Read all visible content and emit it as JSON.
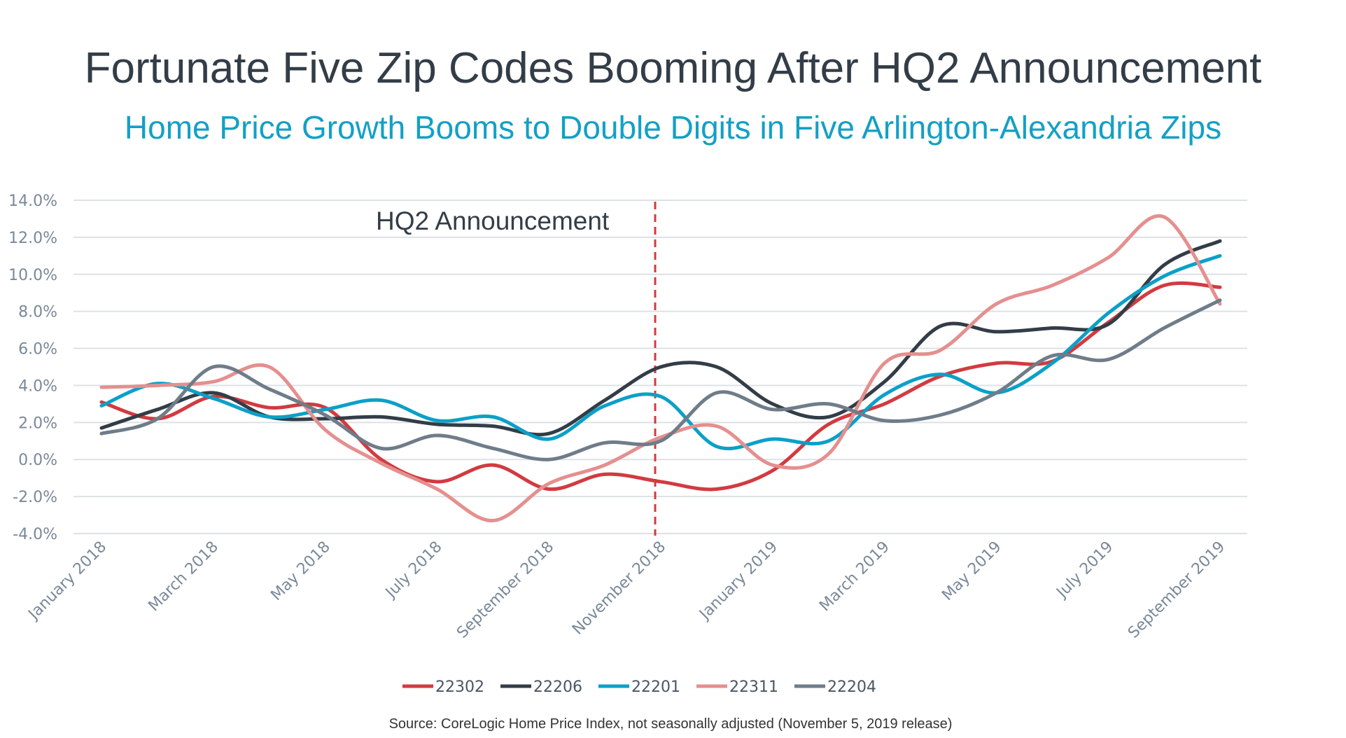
{
  "chart_data": {
    "type": "line",
    "title": "Fortunate Five Zip Codes Booming After HQ2 Announcement",
    "subtitle": "Home Price Growth Booms to Double Digits in Five Arlington-Alexandria Zips",
    "xlabel": "",
    "ylabel": "",
    "ylim": [
      -4,
      14
    ],
    "yticks": [
      "14.0%",
      "12.0%",
      "10.0%",
      "8.0%",
      "6.0%",
      "4.0%",
      "2.0%",
      "0.0%",
      "-2.0%",
      "-4.0%"
    ],
    "ytick_values": [
      14,
      12,
      10,
      8,
      6,
      4,
      2,
      0,
      -2,
      -4
    ],
    "x_labels": [
      "January 2018",
      "March 2018",
      "May 2018",
      "July 2018",
      "September 2018",
      "November 2018",
      "January 2019",
      "March 2019",
      "May 2019",
      "July 2019",
      "September 2019"
    ],
    "x": [
      "Jan 2018",
      "Feb 2018",
      "Mar 2018",
      "Apr 2018",
      "May 2018",
      "Jun 2018",
      "Jul 2018",
      "Aug 2018",
      "Sep 2018",
      "Oct 2018",
      "Nov 2018",
      "Dec 2018",
      "Jan 2019",
      "Feb 2019",
      "Mar 2019",
      "Apr 2019",
      "May 2019",
      "Jun 2019",
      "Jul 2019",
      "Aug 2019",
      "Sep 2019"
    ],
    "grid": true,
    "legend_placement": "bottom",
    "annotation": {
      "text": "HQ2 Announcement",
      "month_index": 9.9
    },
    "series": [
      {
        "name": "22302",
        "color": "#d13b40",
        "values": [
          3.1,
          2.2,
          3.4,
          2.8,
          2.8,
          0.0,
          -1.2,
          -0.3,
          -1.6,
          -0.8,
          -1.2,
          -1.6,
          -0.6,
          1.9,
          3.0,
          4.5,
          5.2,
          5.3,
          7.4,
          9.4,
          9.3
        ]
      },
      {
        "name": "22206",
        "color": "#333d47",
        "values": [
          1.7,
          2.7,
          3.6,
          2.3,
          2.2,
          2.3,
          1.9,
          1.8,
          1.4,
          3.2,
          5.0,
          5.0,
          3.0,
          2.3,
          4.2,
          7.2,
          6.9,
          7.1,
          7.3,
          10.5,
          11.8
        ]
      },
      {
        "name": "22201",
        "color": "#0ba0c8",
        "values": [
          2.9,
          4.1,
          3.3,
          2.3,
          2.7,
          3.2,
          2.1,
          2.3,
          1.1,
          2.9,
          3.4,
          0.7,
          1.1,
          1.0,
          3.5,
          4.6,
          3.6,
          5.2,
          7.9,
          9.9,
          11.0
        ]
      },
      {
        "name": "22311",
        "color": "#e58f8f",
        "values": [
          3.9,
          4.0,
          4.2,
          5.0,
          1.6,
          -0.2,
          -1.6,
          -3.3,
          -1.3,
          -0.3,
          1.2,
          1.8,
          -0.3,
          0.3,
          5.2,
          5.9,
          8.4,
          9.4,
          10.9,
          13.1,
          8.4
        ]
      },
      {
        "name": "22204",
        "color": "#6f7c89",
        "values": [
          1.4,
          2.2,
          5.0,
          3.8,
          2.4,
          0.6,
          1.3,
          0.6,
          0.0,
          0.9,
          1.0,
          3.6,
          2.7,
          3.0,
          2.1,
          2.4,
          3.6,
          5.6,
          5.4,
          7.1,
          8.6
        ]
      }
    ],
    "source": "Source:  CoreLogic Home Price Index, not seasonally adjusted (November 5, 2019 release)"
  }
}
